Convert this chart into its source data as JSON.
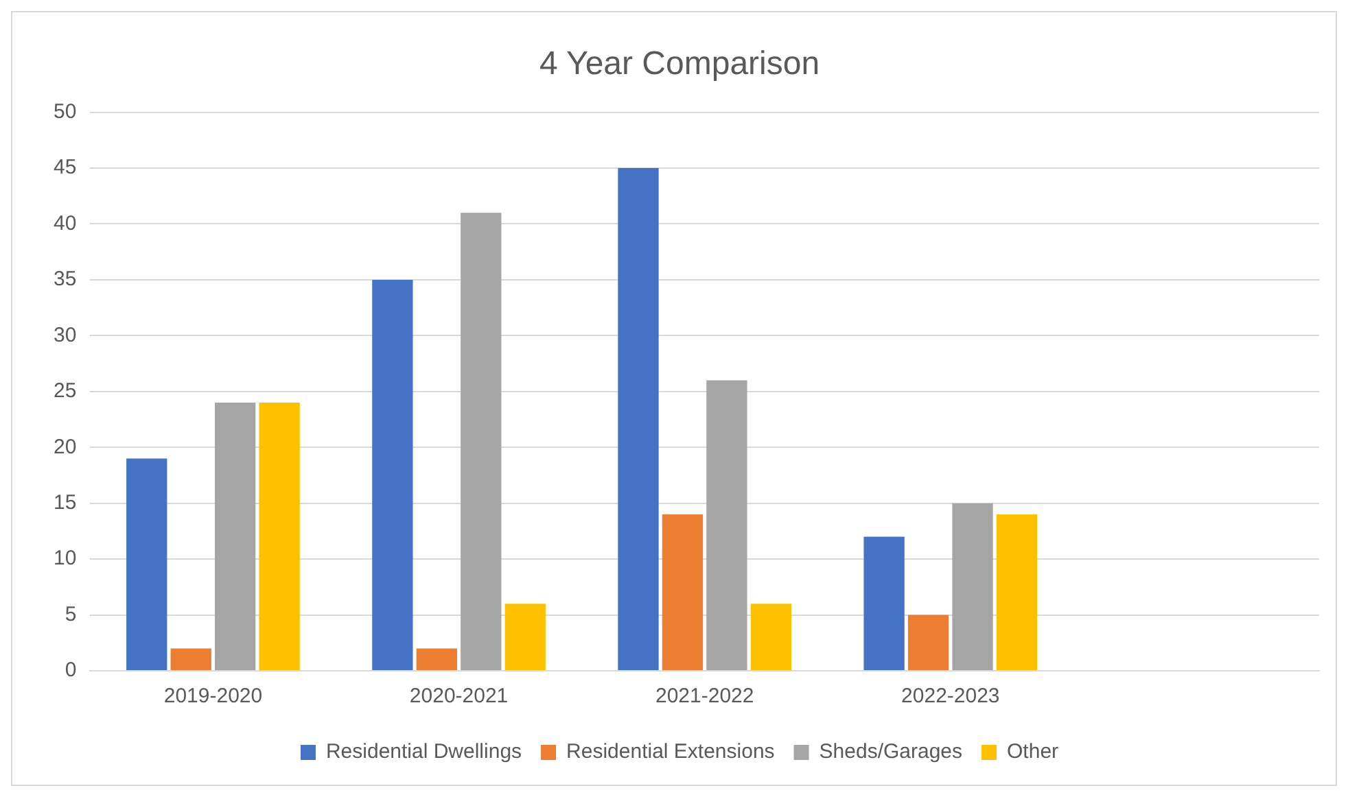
{
  "chart_data": {
    "type": "bar",
    "title": "4 Year Comparison",
    "categories": [
      "2019-2020",
      "2020-2021",
      "2021-2022",
      "2022-2023",
      null
    ],
    "series": [
      {
        "name": "Residential Dwellings",
        "color": "#4472c4",
        "values": [
          19,
          35,
          45,
          12,
          null
        ]
      },
      {
        "name": "Residential Extensions",
        "color": "#ed7d31",
        "values": [
          2,
          2,
          14,
          5,
          null
        ]
      },
      {
        "name": "Sheds/Garages",
        "color": "#a5a5a5",
        "values": [
          24,
          41,
          26,
          15,
          null
        ]
      },
      {
        "name": "Other",
        "color": "#ffc000",
        "values": [
          24,
          6,
          6,
          14,
          null
        ]
      }
    ],
    "ylim": [
      0,
      50
    ],
    "yticks": [
      0,
      5,
      10,
      15,
      20,
      25,
      30,
      35,
      40,
      45,
      50
    ],
    "grid": "y",
    "legend": "bottom"
  }
}
